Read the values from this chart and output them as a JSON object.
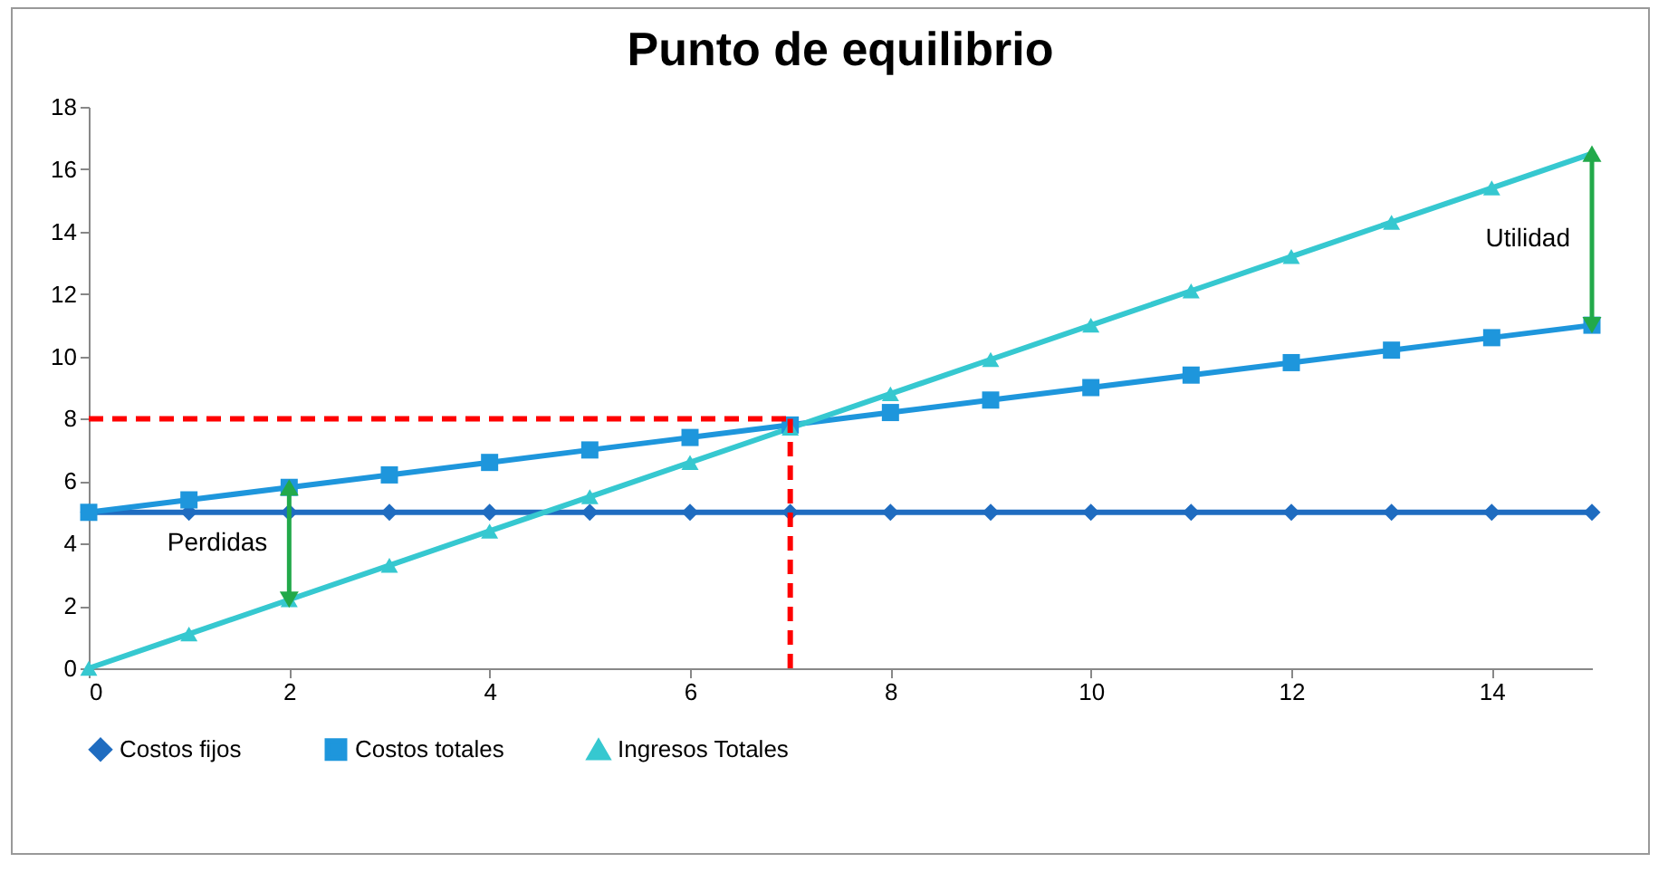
{
  "chart_data": {
    "type": "line",
    "title": "Punto de equilibrio",
    "x": [
      0,
      1,
      2,
      3,
      4,
      5,
      6,
      7,
      8,
      9,
      10,
      11,
      12,
      13,
      14,
      15
    ],
    "series": [
      {
        "name": "Costos fijos",
        "color": "#1f6cc0",
        "marker": "diamond",
        "values": [
          5,
          5,
          5,
          5,
          5,
          5,
          5,
          5,
          5,
          5,
          5,
          5,
          5,
          5,
          5,
          5
        ]
      },
      {
        "name": "Costos totales",
        "color": "#1e96dc",
        "marker": "square",
        "values": [
          5,
          5.4,
          5.8,
          6.2,
          6.6,
          7,
          7.4,
          7.8,
          8.2,
          8.6,
          9,
          9.4,
          9.8,
          10.2,
          10.6,
          11
        ]
      },
      {
        "name": "Ingresos Totales",
        "color": "#36c8d0",
        "marker": "triangle",
        "values": [
          0,
          1.1,
          2.2,
          3.3,
          4.4,
          5.5,
          6.6,
          7.7,
          8.8,
          9.9,
          11,
          12.1,
          13.2,
          14.3,
          15.4,
          16.5
        ]
      }
    ],
    "xlim": [
      0,
      15
    ],
    "xticks": [
      0,
      2,
      4,
      6,
      8,
      10,
      12,
      14
    ],
    "ylim": [
      0,
      18
    ],
    "yticks": [
      0,
      2,
      4,
      6,
      8,
      10,
      12,
      14,
      16,
      18
    ],
    "ref_lines": [
      {
        "axis": "y",
        "value": 8,
        "color": "#ff0000",
        "line_style": "dashed"
      },
      {
        "axis": "x",
        "value": 7,
        "color": "#ff0000",
        "line_style": "dashed"
      }
    ],
    "annotations": [
      {
        "text": "Perdidas",
        "x": 2,
        "y": 2.2
      },
      {
        "text": "Utilidad",
        "x": 15,
        "y": 16.5
      }
    ],
    "legend": "bottom",
    "grid": false,
    "line_style": "solid"
  }
}
